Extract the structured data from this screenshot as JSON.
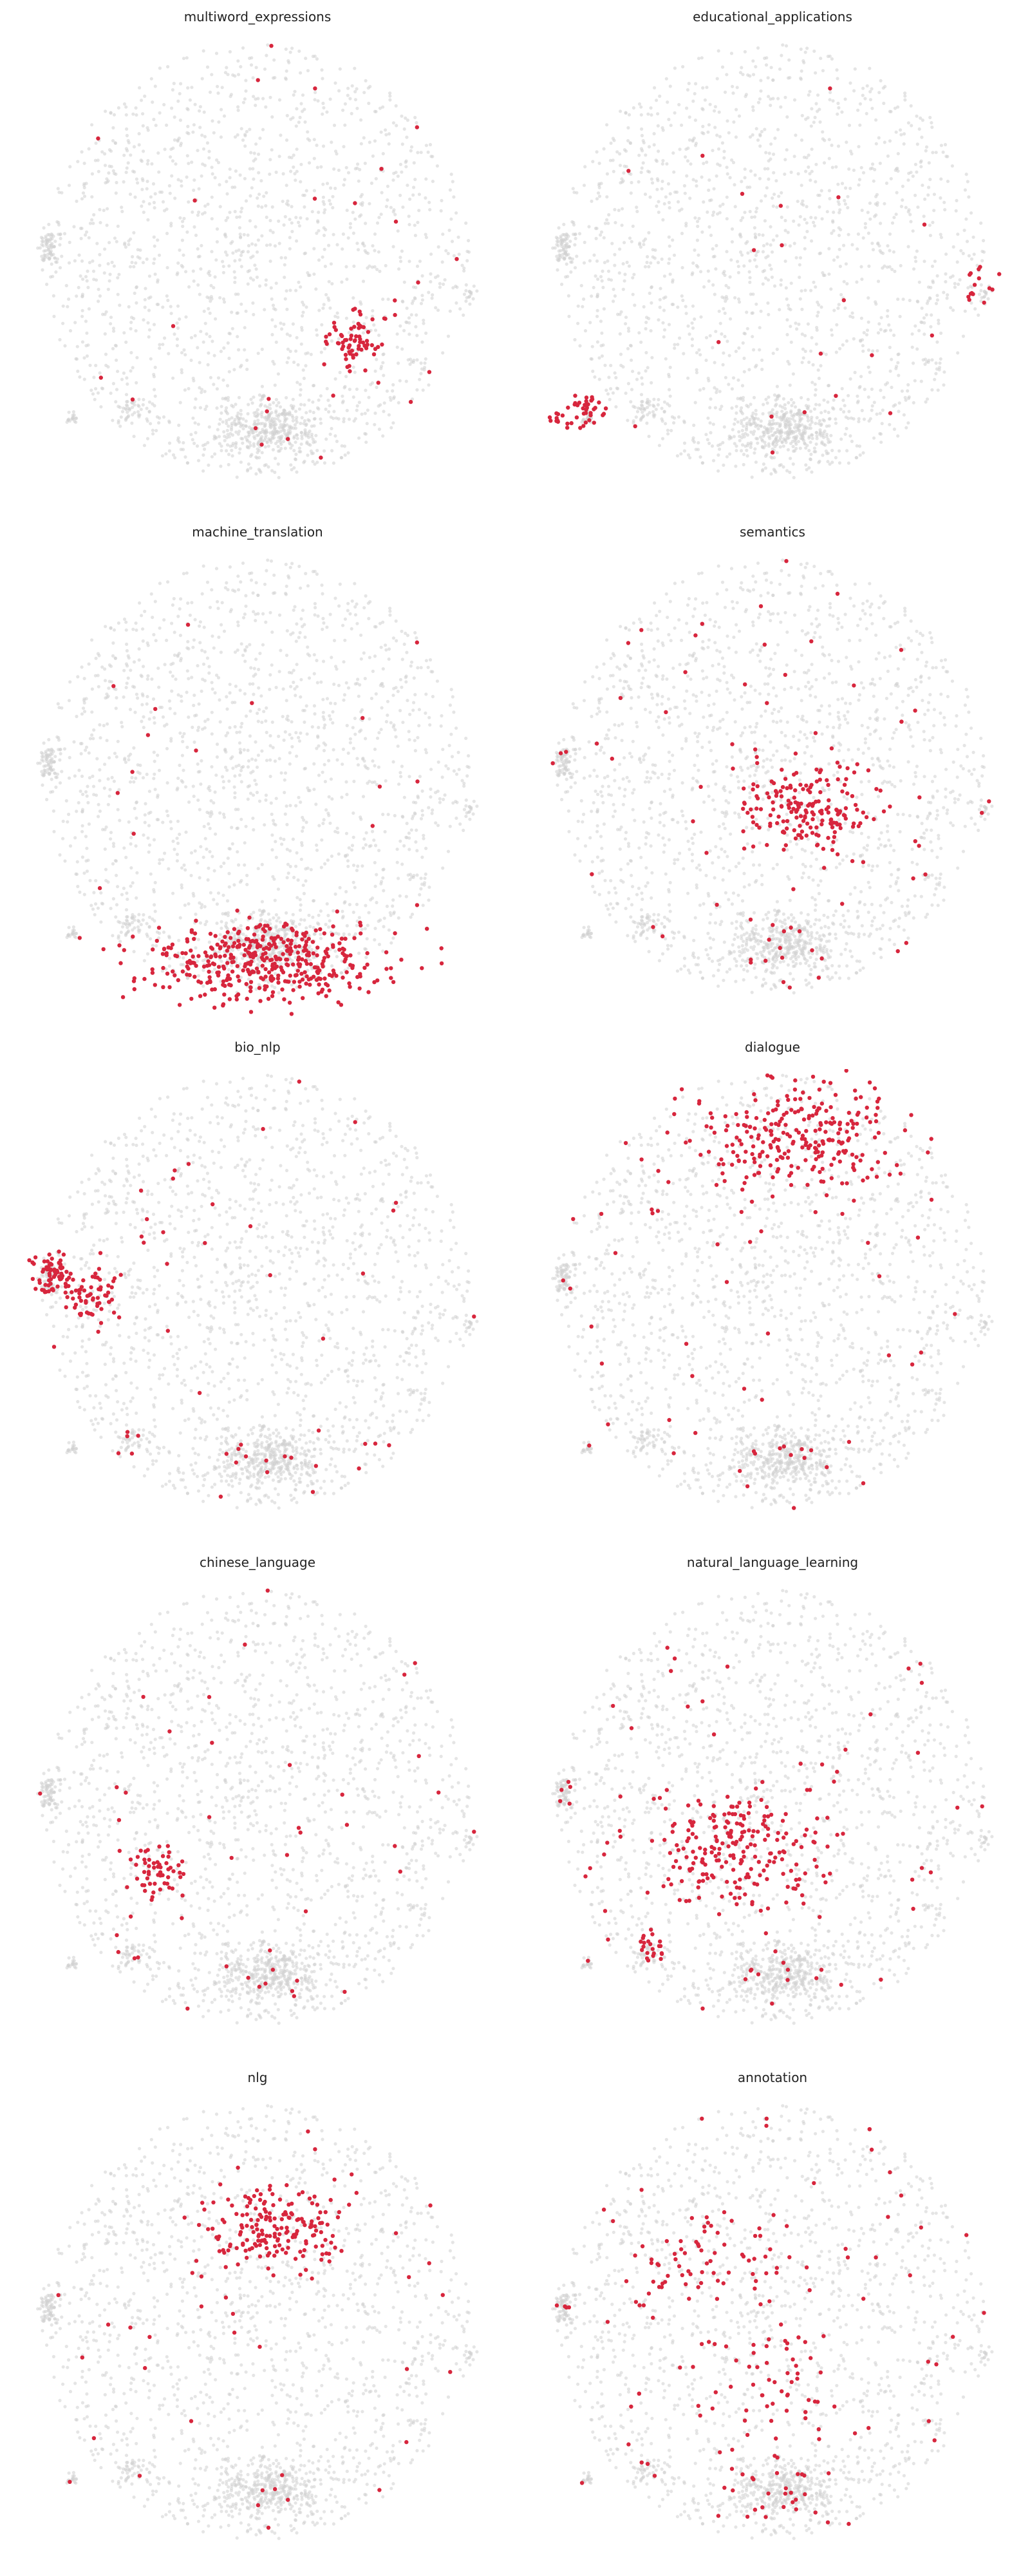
{
  "colors": {
    "background_points": "#cfcfcf",
    "highlight_points": "#d7263d"
  },
  "chart_data": [
    {
      "type": "scatter",
      "title": "multiword_expressions",
      "highlight_clusters": [
        {
          "cx": 0.71,
          "cy": 0.65,
          "rx": 0.06,
          "ry": 0.06,
          "n": 70
        }
      ],
      "highlight_scatter": 25
    },
    {
      "type": "scatter",
      "title": "educational_applications",
      "highlight_clusters": [
        {
          "cx": 0.1,
          "cy": 0.8,
          "rx": 0.04,
          "ry": 0.04,
          "n": 35
        },
        {
          "cx": 0.04,
          "cy": 0.82,
          "rx": 0.015,
          "ry": 0.015,
          "n": 10
        },
        {
          "cx": 0.94,
          "cy": 0.53,
          "rx": 0.04,
          "ry": 0.05,
          "n": 15
        }
      ],
      "highlight_scatter": 20
    },
    {
      "type": "scatter",
      "title": "machine_translation",
      "highlight_clusters": [
        {
          "cx": 0.52,
          "cy": 0.88,
          "rx": 0.26,
          "ry": 0.08,
          "n": 420
        }
      ],
      "highlight_scatter": 30
    },
    {
      "type": "scatter",
      "title": "semantics",
      "highlight_clusters": [
        {
          "cx": 0.58,
          "cy": 0.55,
          "rx": 0.15,
          "ry": 0.1,
          "n": 180
        }
      ],
      "highlight_scatter": 70
    },
    {
      "type": "scatter",
      "title": "bio_nlp",
      "highlight_clusters": [
        {
          "cx": 0.06,
          "cy": 0.44,
          "rx": 0.05,
          "ry": 0.04,
          "n": 70
        },
        {
          "cx": 0.15,
          "cy": 0.49,
          "rx": 0.06,
          "ry": 0.05,
          "n": 60
        }
      ],
      "highlight_scatter": 50
    },
    {
      "type": "scatter",
      "title": "dialogue",
      "highlight_clusters": [
        {
          "cx": 0.55,
          "cy": 0.15,
          "rx": 0.2,
          "ry": 0.12,
          "n": 260
        }
      ],
      "highlight_scatter": 60
    },
    {
      "type": "scatter",
      "title": "chinese_language",
      "highlight_clusters": [
        {
          "cx": 0.28,
          "cy": 0.62,
          "rx": 0.05,
          "ry": 0.05,
          "n": 55
        }
      ],
      "highlight_scatter": 45
    },
    {
      "type": "scatter",
      "title": "natural_language_learning",
      "highlight_clusters": [
        {
          "cx": 0.42,
          "cy": 0.57,
          "rx": 0.18,
          "ry": 0.12,
          "n": 220
        },
        {
          "cx": 0.24,
          "cy": 0.78,
          "rx": 0.03,
          "ry": 0.03,
          "n": 20
        }
      ],
      "highlight_scatter": 60
    },
    {
      "type": "scatter",
      "title": "nlg",
      "highlight_clusters": [
        {
          "cx": 0.54,
          "cy": 0.28,
          "rx": 0.14,
          "ry": 0.08,
          "n": 180
        }
      ],
      "highlight_scatter": 40
    },
    {
      "type": "scatter",
      "title": "annotation",
      "highlight_clusters": [
        {
          "cx": 0.35,
          "cy": 0.35,
          "rx": 0.18,
          "ry": 0.1,
          "n": 60
        },
        {
          "cx": 0.5,
          "cy": 0.6,
          "rx": 0.15,
          "ry": 0.12,
          "n": 50
        }
      ],
      "highlight_scatter": 100
    }
  ]
}
